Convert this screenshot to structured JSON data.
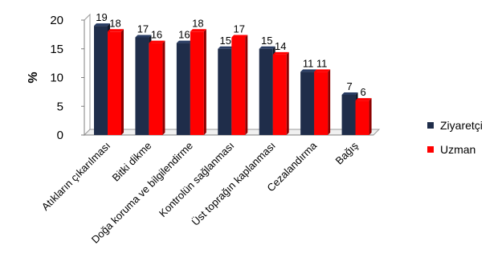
{
  "chart_data": {
    "type": "bar",
    "ylabel": "%",
    "xlabel": "",
    "title": "",
    "ylim": [
      0,
      20
    ],
    "yticks": [
      0,
      5,
      10,
      15,
      20
    ],
    "categories": [
      "Atıkların çıkarılması",
      "Bitki dikme",
      "Doğa koruma ve bilgilendirme",
      "Kontrolün sağlanması",
      "Üst toprağın kaplanması",
      "Cezalandırma",
      "Bağış"
    ],
    "series": [
      {
        "name": "Ziyaretçi",
        "color": "#1f2d4a",
        "values": [
          19,
          17,
          16,
          15,
          15,
          11,
          7
        ]
      },
      {
        "name": "Uzman",
        "color": "#ff0000",
        "values": [
          18,
          16,
          18,
          17,
          14,
          11,
          6
        ]
      }
    ],
    "legend_position": "right",
    "style": "3d"
  }
}
